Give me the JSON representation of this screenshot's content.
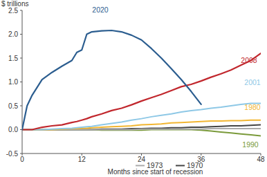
{
  "chart_data": {
    "type": "line",
    "y_label": "$ trillions",
    "x_label": "Months since start of recession",
    "x": [
      0,
      1,
      2,
      4,
      6,
      8,
      10,
      11,
      12,
      13,
      14,
      16,
      18,
      20,
      22,
      24,
      26,
      28,
      30,
      32,
      34,
      36,
      38,
      40,
      42,
      44,
      46,
      48
    ],
    "xlim": [
      0,
      48
    ],
    "xticks": [
      0,
      12,
      24,
      36,
      48
    ],
    "ylim": [
      -0.5,
      2.5
    ],
    "yticks": [
      -0.5,
      {
        "value": 0,
        "label": "0.0"
      },
      0.5,
      {
        "value": 1,
        "label": "1.0"
      },
      1.5,
      {
        "value": 2,
        "label": "2.0"
      },
      2.5
    ],
    "grid": false,
    "series": [
      {
        "name": "2020",
        "color": "#2b5d8f",
        "values": [
          0,
          0.5,
          0.72,
          1.05,
          1.2,
          1.33,
          1.45,
          1.62,
          1.67,
          2.0,
          2.05,
          2.07,
          2.08,
          2.05,
          1.98,
          1.88,
          1.7,
          1.5,
          1.28,
          1.05,
          0.8,
          0.53,
          null,
          null,
          null,
          null,
          null,
          null
        ]
      },
      {
        "name": "2008",
        "color": "#c1272d",
        "values": [
          0,
          0,
          0,
          0.05,
          0.08,
          0.1,
          0.15,
          0.17,
          0.2,
          0.23,
          0.27,
          0.33,
          0.4,
          0.45,
          0.52,
          0.6,
          0.67,
          0.74,
          0.82,
          0.9,
          0.95,
          1.02,
          1.1,
          1.17,
          1.25,
          1.35,
          1.45,
          1.6
        ]
      },
      {
        "name": "2001",
        "color": "#8ec8e6",
        "values": [
          0,
          0,
          0,
          0,
          0.01,
          0.02,
          0.03,
          0.04,
          0.05,
          0.06,
          0.07,
          0.1,
          0.13,
          0.16,
          0.2,
          0.23,
          0.27,
          0.3,
          0.33,
          0.37,
          0.4,
          0.42,
          0.45,
          0.47,
          0.5,
          0.53,
          0.55,
          0.55
        ]
      },
      {
        "name": "1980",
        "color": "#f2b632",
        "values": [
          0,
          0,
          0,
          0,
          0,
          0.01,
          0.02,
          0.02,
          0.03,
          0.03,
          0.04,
          0.05,
          0.06,
          0.07,
          0.08,
          0.1,
          0.11,
          0.12,
          0.14,
          0.15,
          0.16,
          0.17,
          0.18,
          0.18,
          0.19,
          0.19,
          0.2,
          0.2
        ]
      },
      {
        "name": "1973",
        "color": "#aaaaaa",
        "values": [
          0,
          0,
          0,
          0,
          0,
          0,
          0,
          0,
          0,
          0,
          0,
          0,
          0,
          0,
          0,
          0.01,
          0.01,
          0.01,
          0.01,
          0.01,
          0.01,
          0.01,
          0.02,
          0.02,
          0.02,
          0.02,
          0.02,
          0.02
        ]
      },
      {
        "name": "1970",
        "color": "#444444",
        "values": [
          0,
          0,
          0,
          0,
          0,
          0,
          0,
          0,
          0,
          0,
          0,
          0.01,
          0.01,
          0.01,
          0.02,
          0.02,
          0.03,
          0.03,
          0.04,
          0.04,
          0.05,
          0.05,
          0.06,
          0.07,
          0.08,
          0.08,
          0.09,
          0.1
        ]
      },
      {
        "name": "1990",
        "color": "#7a9a3a",
        "values": [
          0,
          0,
          0,
          0,
          0,
          0,
          0,
          0,
          0,
          0,
          0,
          -0.01,
          -0.01,
          -0.01,
          -0.01,
          -0.01,
          0,
          0,
          0,
          0,
          0,
          -0.01,
          -0.03,
          -0.05,
          -0.07,
          -0.09,
          -0.11,
          -0.13
        ]
      }
    ]
  }
}
